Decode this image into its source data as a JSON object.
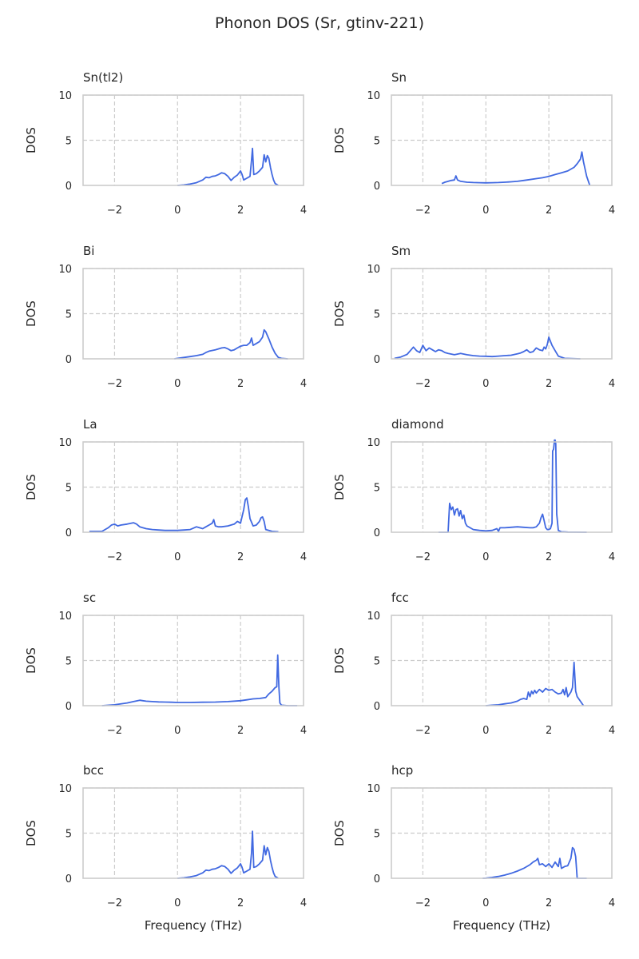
{
  "figure": {
    "title": "Phonon DOS (Sr, gtinv-221)"
  },
  "style": {
    "line_color": "#4169e1",
    "grid_color": "#cccccc",
    "spine_color": "#cccccc",
    "text_color": "#262626"
  },
  "chart_data": [
    {
      "type": "line",
      "title": "Sn(tl2)",
      "xlabel": "",
      "ylabel": "DOS",
      "xlim": [
        -3,
        4
      ],
      "ylim": [
        0,
        10
      ],
      "xticks": [
        -2,
        0,
        2,
        4
      ],
      "yticks": [
        0,
        5,
        10
      ],
      "x": [
        0.0,
        0.2,
        0.4,
        0.6,
        0.8,
        0.9,
        1.0,
        1.1,
        1.2,
        1.3,
        1.4,
        1.5,
        1.6,
        1.7,
        1.8,
        1.9,
        2.0,
        2.05,
        2.1,
        2.2,
        2.3,
        2.35,
        2.38,
        2.42,
        2.5,
        2.6,
        2.7,
        2.75,
        2.8,
        2.85,
        2.9,
        2.95,
        3.0,
        3.05,
        3.1,
        3.2
      ],
      "y": [
        0.0,
        0.05,
        0.15,
        0.3,
        0.6,
        0.9,
        0.85,
        1.0,
        1.05,
        1.2,
        1.4,
        1.3,
        1.0,
        0.55,
        0.9,
        1.15,
        1.6,
        1.2,
        0.6,
        0.8,
        1.0,
        2.8,
        4.1,
        1.2,
        1.3,
        1.6,
        2.0,
        3.4,
        2.6,
        3.3,
        3.0,
        2.0,
        1.2,
        0.6,
        0.2,
        0.0
      ]
    },
    {
      "type": "line",
      "title": "Sn",
      "xlabel": "",
      "ylabel": "DOS",
      "xlim": [
        -3,
        4
      ],
      "ylim": [
        0,
        10
      ],
      "xticks": [
        -2,
        0,
        2,
        4
      ],
      "yticks": [
        0,
        5,
        10
      ],
      "x": [
        -1.4,
        -1.3,
        -1.2,
        -1.1,
        -1.0,
        -0.95,
        -0.9,
        -0.8,
        -0.6,
        -0.4,
        -0.2,
        0.0,
        0.2,
        0.4,
        0.6,
        0.8,
        1.0,
        1.2,
        1.4,
        1.6,
        1.8,
        2.0,
        2.2,
        2.4,
        2.6,
        2.8,
        2.9,
        3.0,
        3.05,
        3.1,
        3.2,
        3.3
      ],
      "y": [
        0.2,
        0.35,
        0.45,
        0.55,
        0.6,
        1.05,
        0.6,
        0.45,
        0.35,
        0.32,
        0.3,
        0.28,
        0.3,
        0.32,
        0.35,
        0.4,
        0.45,
        0.55,
        0.65,
        0.75,
        0.85,
        1.0,
        1.2,
        1.4,
        1.6,
        2.0,
        2.4,
        2.9,
        3.7,
        2.6,
        1.0,
        0.0
      ]
    },
    {
      "type": "line",
      "title": "Bi",
      "xlabel": "",
      "ylabel": "DOS",
      "xlim": [
        -3,
        4
      ],
      "ylim": [
        0,
        10
      ],
      "xticks": [
        -2,
        0,
        2,
        4
      ],
      "yticks": [
        0,
        5,
        10
      ],
      "x": [
        -0.1,
        0.0,
        0.2,
        0.4,
        0.6,
        0.8,
        0.9,
        1.0,
        1.2,
        1.4,
        1.5,
        1.6,
        1.7,
        1.8,
        1.9,
        2.0,
        2.1,
        2.2,
        2.3,
        2.35,
        2.4,
        2.5,
        2.6,
        2.7,
        2.75,
        2.8,
        2.9,
        3.0,
        3.1,
        3.2,
        3.3,
        3.5
      ],
      "y": [
        0.0,
        0.05,
        0.15,
        0.25,
        0.35,
        0.5,
        0.7,
        0.85,
        1.0,
        1.2,
        1.25,
        1.1,
        0.9,
        1.0,
        1.2,
        1.4,
        1.5,
        1.5,
        1.8,
        2.3,
        1.5,
        1.7,
        1.9,
        2.4,
        3.2,
        3.0,
        2.2,
        1.3,
        0.6,
        0.15,
        0.05,
        0.0
      ]
    },
    {
      "type": "line",
      "title": "Sm",
      "xlabel": "",
      "ylabel": "DOS",
      "xlim": [
        -3,
        4
      ],
      "ylim": [
        0,
        10
      ],
      "xticks": [
        -2,
        0,
        2,
        4
      ],
      "yticks": [
        0,
        5,
        10
      ],
      "x": [
        -2.9,
        -2.7,
        -2.5,
        -2.4,
        -2.3,
        -2.2,
        -2.1,
        -2.0,
        -1.9,
        -1.8,
        -1.7,
        -1.6,
        -1.5,
        -1.4,
        -1.3,
        -1.2,
        -1.0,
        -0.8,
        -0.6,
        -0.4,
        -0.2,
        0.0,
        0.2,
        0.4,
        0.6,
        0.8,
        1.0,
        1.1,
        1.2,
        1.3,
        1.4,
        1.5,
        1.6,
        1.7,
        1.8,
        1.85,
        1.9,
        1.95,
        2.0,
        2.1,
        2.2,
        2.3,
        2.5,
        3.0
      ],
      "y": [
        0.05,
        0.2,
        0.5,
        0.9,
        1.3,
        0.9,
        0.7,
        1.5,
        0.9,
        1.2,
        1.0,
        0.8,
        1.0,
        0.9,
        0.7,
        0.6,
        0.45,
        0.6,
        0.45,
        0.35,
        0.3,
        0.28,
        0.25,
        0.3,
        0.35,
        0.4,
        0.55,
        0.65,
        0.8,
        1.0,
        0.7,
        0.8,
        1.2,
        1.0,
        0.9,
        1.3,
        1.1,
        1.6,
        2.4,
        1.5,
        0.9,
        0.3,
        0.05,
        0.0
      ]
    },
    {
      "type": "line",
      "title": "La",
      "xlabel": "",
      "ylabel": "DOS",
      "xlim": [
        -3,
        4
      ],
      "ylim": [
        0,
        10
      ],
      "xticks": [
        -2,
        0,
        2,
        4
      ],
      "yticks": [
        0,
        5,
        10
      ],
      "x": [
        -2.8,
        -2.4,
        -2.2,
        -2.1,
        -2.0,
        -1.9,
        -1.8,
        -1.6,
        -1.4,
        -1.3,
        -1.2,
        -1.0,
        -0.8,
        -0.6,
        -0.4,
        -0.2,
        0.0,
        0.2,
        0.4,
        0.5,
        0.6,
        0.7,
        0.8,
        0.9,
        1.0,
        1.1,
        1.15,
        1.2,
        1.3,
        1.4,
        1.6,
        1.8,
        1.9,
        2.0,
        2.1,
        2.15,
        2.2,
        2.25,
        2.3,
        2.4,
        2.5,
        2.6,
        2.65,
        2.7,
        2.75,
        2.8,
        3.0,
        3.2
      ],
      "y": [
        0.1,
        0.1,
        0.5,
        0.8,
        0.9,
        0.7,
        0.8,
        0.9,
        1.05,
        0.9,
        0.6,
        0.4,
        0.3,
        0.25,
        0.2,
        0.2,
        0.2,
        0.25,
        0.3,
        0.45,
        0.6,
        0.5,
        0.4,
        0.6,
        0.8,
        1.0,
        1.4,
        0.7,
        0.6,
        0.6,
        0.7,
        0.9,
        1.2,
        1.0,
        2.5,
        3.6,
        3.8,
        2.8,
        1.5,
        0.7,
        0.8,
        1.2,
        1.6,
        1.7,
        1.2,
        0.3,
        0.1,
        0.05
      ]
    },
    {
      "type": "line",
      "title": "diamond",
      "xlabel": "",
      "ylabel": "DOS",
      "xlim": [
        -3,
        4
      ],
      "ylim": [
        0,
        10
      ],
      "xticks": [
        -2,
        0,
        2,
        4
      ],
      "yticks": [
        0,
        5,
        10
      ],
      "x": [
        -1.5,
        -1.2,
        -1.15,
        -1.1,
        -1.05,
        -1.0,
        -0.95,
        -0.9,
        -0.85,
        -0.8,
        -0.75,
        -0.7,
        -0.65,
        -0.6,
        -0.5,
        -0.4,
        -0.3,
        -0.2,
        0.0,
        0.2,
        0.35,
        0.4,
        0.45,
        0.6,
        0.8,
        1.0,
        1.2,
        1.4,
        1.5,
        1.6,
        1.7,
        1.75,
        1.8,
        1.85,
        1.9,
        1.95,
        2.0,
        2.05,
        2.1,
        2.12,
        2.15,
        2.18,
        2.2,
        2.22,
        2.25,
        2.3,
        2.4,
        2.6,
        2.8,
        3.2
      ],
      "y": [
        0.0,
        0.0,
        3.2,
        2.5,
        2.8,
        1.9,
        2.5,
        2.6,
        1.8,
        2.4,
        1.5,
        1.9,
        1.0,
        0.7,
        0.5,
        0.3,
        0.25,
        0.2,
        0.15,
        0.2,
        0.4,
        0.1,
        0.5,
        0.5,
        0.55,
        0.6,
        0.55,
        0.5,
        0.5,
        0.6,
        1.0,
        1.6,
        2.0,
        1.3,
        0.5,
        0.3,
        0.3,
        0.4,
        1.0,
        9.0,
        9.2,
        10.2,
        10.2,
        9.8,
        2.0,
        0.2,
        0.05,
        0.02,
        0.01,
        0.0
      ]
    },
    {
      "type": "line",
      "title": "sc",
      "xlabel": "",
      "ylabel": "DOS",
      "xlim": [
        -3,
        4
      ],
      "ylim": [
        0,
        10
      ],
      "xticks": [
        -2,
        0,
        2,
        4
      ],
      "yticks": [
        0,
        5,
        10
      ],
      "x": [
        -2.4,
        -2.0,
        -1.6,
        -1.4,
        -1.2,
        -1.1,
        -1.0,
        -0.8,
        -0.6,
        -0.4,
        -0.2,
        0.0,
        0.4,
        0.8,
        1.2,
        1.6,
        2.0,
        2.2,
        2.4,
        2.6,
        2.8,
        2.9,
        3.0,
        3.1,
        3.15,
        3.18,
        3.22,
        3.25,
        3.3,
        3.5,
        3.8
      ],
      "y": [
        0.0,
        0.1,
        0.3,
        0.45,
        0.6,
        0.55,
        0.5,
        0.45,
        0.42,
        0.4,
        0.38,
        0.35,
        0.35,
        0.38,
        0.4,
        0.45,
        0.55,
        0.65,
        0.75,
        0.8,
        0.9,
        1.3,
        1.6,
        2.0,
        2.1,
        5.6,
        2.0,
        0.3,
        0.05,
        0.0,
        0.0
      ]
    },
    {
      "type": "line",
      "title": "fcc",
      "xlabel": "",
      "ylabel": "DOS",
      "xlim": [
        -3,
        4
      ],
      "ylim": [
        0,
        10
      ],
      "xticks": [
        -2,
        0,
        2,
        4
      ],
      "yticks": [
        0,
        5,
        10
      ],
      "x": [
        0.0,
        0.2,
        0.4,
        0.6,
        0.8,
        1.0,
        1.1,
        1.2,
        1.3,
        1.35,
        1.4,
        1.45,
        1.5,
        1.55,
        1.6,
        1.7,
        1.8,
        1.9,
        2.0,
        2.1,
        2.2,
        2.3,
        2.4,
        2.45,
        2.5,
        2.55,
        2.6,
        2.7,
        2.75,
        2.8,
        2.85,
        2.9,
        3.0,
        3.1
      ],
      "y": [
        0.0,
        0.05,
        0.1,
        0.2,
        0.3,
        0.5,
        0.7,
        0.8,
        0.7,
        1.5,
        1.0,
        1.6,
        1.3,
        1.7,
        1.4,
        1.8,
        1.5,
        1.9,
        1.7,
        1.8,
        1.5,
        1.3,
        1.4,
        1.8,
        1.2,
        2.0,
        1.0,
        1.5,
        2.0,
        4.8,
        1.6,
        1.0,
        0.5,
        0.0
      ]
    },
    {
      "type": "line",
      "title": "bcc",
      "xlabel": "Frequency (THz)",
      "ylabel": "DOS",
      "xlim": [
        -3,
        4
      ],
      "ylim": [
        0,
        10
      ],
      "xticks": [
        -2,
        0,
        2,
        4
      ],
      "yticks": [
        0,
        5,
        10
      ],
      "x": [
        0.0,
        0.2,
        0.4,
        0.6,
        0.8,
        0.9,
        1.0,
        1.1,
        1.2,
        1.3,
        1.4,
        1.5,
        1.6,
        1.7,
        1.8,
        1.9,
        2.0,
        2.05,
        2.1,
        2.2,
        2.3,
        2.35,
        2.38,
        2.42,
        2.5,
        2.6,
        2.7,
        2.75,
        2.8,
        2.85,
        2.9,
        2.95,
        3.0,
        3.05,
        3.1,
        3.2
      ],
      "y": [
        0.0,
        0.05,
        0.15,
        0.3,
        0.6,
        0.9,
        0.85,
        1.0,
        1.05,
        1.2,
        1.4,
        1.3,
        1.0,
        0.55,
        0.9,
        1.15,
        1.6,
        1.2,
        0.6,
        0.8,
        1.0,
        2.8,
        5.2,
        1.2,
        1.3,
        1.6,
        2.0,
        3.6,
        2.6,
        3.4,
        3.0,
        2.0,
        1.2,
        0.6,
        0.2,
        0.0
      ]
    },
    {
      "type": "line",
      "title": "hcp",
      "xlabel": "Frequency (THz)",
      "ylabel": "DOS",
      "xlim": [
        -3,
        4
      ],
      "ylim": [
        0,
        10
      ],
      "xticks": [
        -2,
        0,
        2,
        4
      ],
      "yticks": [
        0,
        5,
        10
      ],
      "x": [
        -0.1,
        0.0,
        0.2,
        0.4,
        0.6,
        0.8,
        1.0,
        1.2,
        1.4,
        1.5,
        1.6,
        1.65,
        1.7,
        1.8,
        1.9,
        2.0,
        2.1,
        2.2,
        2.3,
        2.35,
        2.4,
        2.5,
        2.6,
        2.7,
        2.75,
        2.8,
        2.85,
        2.9,
        3.2
      ],
      "y": [
        0.0,
        0.02,
        0.1,
        0.2,
        0.35,
        0.55,
        0.8,
        1.1,
        1.5,
        1.8,
        2.0,
        2.2,
        1.5,
        1.6,
        1.3,
        1.6,
        1.2,
        1.8,
        1.3,
        2.2,
        1.1,
        1.3,
        1.4,
        2.2,
        3.4,
        3.2,
        2.4,
        0.0,
        0.0
      ]
    }
  ]
}
